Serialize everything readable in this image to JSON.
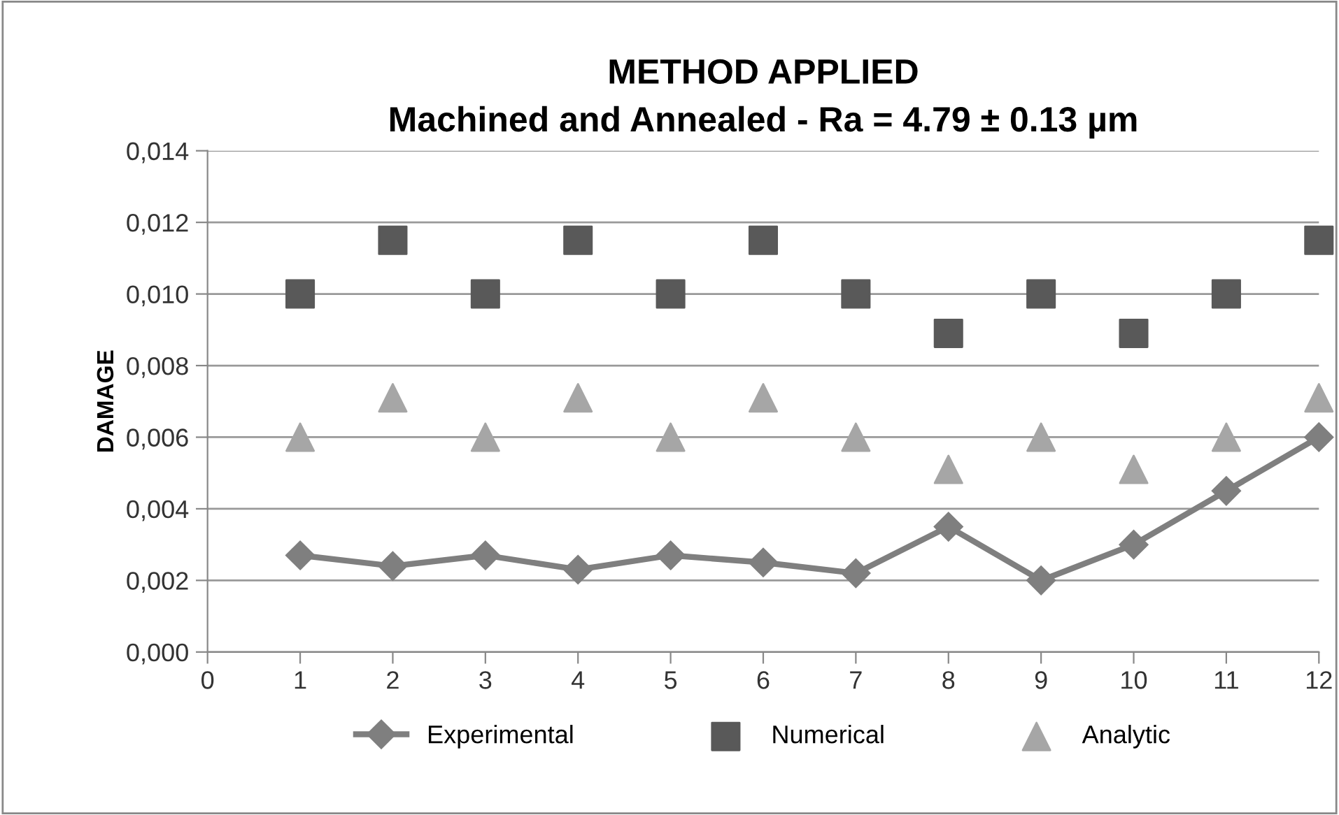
{
  "chart_data": {
    "type": "line",
    "title": "METHOD APPLIED\nMachined and Annealed - Ra = 4.79 ± 0.13 µm",
    "ylabel": "DAMAGE",
    "x": [
      1,
      2,
      3,
      4,
      5,
      6,
      7,
      8,
      9,
      10,
      11,
      12
    ],
    "series": [
      {
        "name": "Experimental",
        "marker": "diamond",
        "color": "#7f7f7f",
        "values": [
          0.0027,
          0.0024,
          0.0027,
          0.0023,
          0.0027,
          0.0025,
          0.0022,
          0.0035,
          0.002,
          0.003,
          0.0045,
          0.006
        ]
      },
      {
        "name": "Numerical",
        "type": "scatter",
        "marker": "square",
        "color": "#595959",
        "values": [
          0.01,
          0.0115,
          0.01,
          0.0115,
          0.01,
          0.0115,
          0.01,
          0.0089,
          0.01,
          0.0089,
          0.01,
          0.0115
        ]
      },
      {
        "name": "Analytic",
        "type": "scatter",
        "marker": "triangle",
        "color": "#a6a6a6",
        "values": [
          0.006,
          0.0071,
          0.006,
          0.0071,
          0.006,
          0.0071,
          0.006,
          0.0051,
          0.006,
          0.0051,
          0.006,
          0.0071
        ]
      }
    ],
    "xlim": [
      0,
      12
    ],
    "xticks": [
      0,
      1,
      2,
      3,
      4,
      5,
      6,
      7,
      8,
      9,
      10,
      11,
      12
    ],
    "ylim": [
      0,
      0.014
    ],
    "yticks": [
      {
        "value": 0,
        "label": "0,000"
      },
      {
        "value": 0.002,
        "label": "0,002"
      },
      {
        "value": 0.004,
        "label": "0,004"
      },
      {
        "value": 0.006,
        "label": "0,006"
      },
      {
        "value": 0.008,
        "label": "0,008"
      },
      {
        "value": 0.01,
        "label": "0,010"
      },
      {
        "value": 0.012,
        "label": "0,012"
      },
      {
        "value": 0.014,
        "label": "0,014"
      }
    ],
    "grid": "y",
    "legend": "bottom"
  }
}
